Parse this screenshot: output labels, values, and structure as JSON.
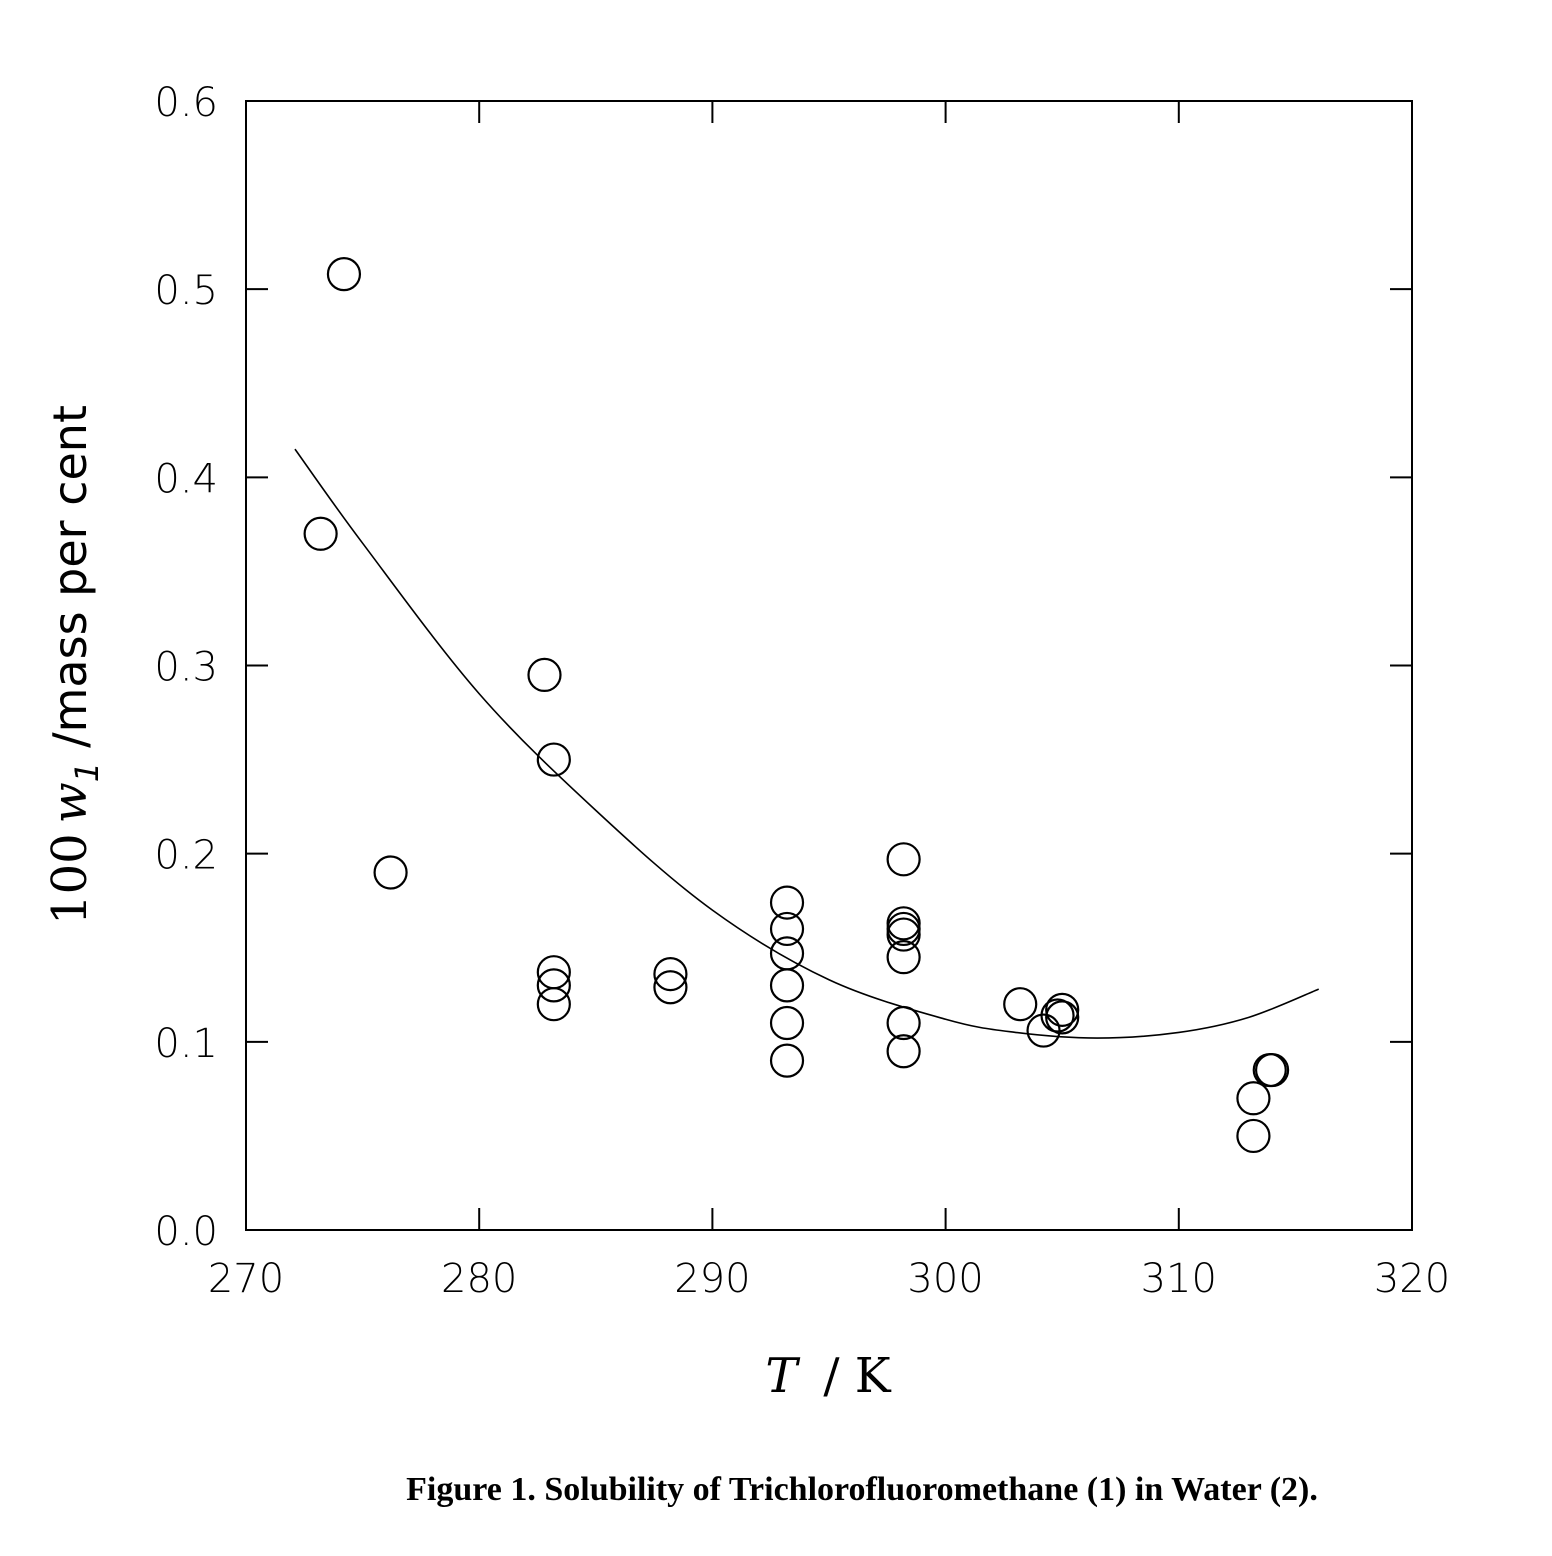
{
  "chart_data": {
    "type": "scatter",
    "xlabel": {
      "symbol": "T",
      "unit": "/  K"
    },
    "ylabel": {
      "prefix": "100",
      "symbol": "w",
      "subscript": "1",
      "unit": "/mass per cent"
    },
    "xlim": [
      270,
      320
    ],
    "ylim": [
      0.0,
      0.6
    ],
    "xticks": [
      "270",
      "280",
      "290",
      "300",
      "310",
      "320"
    ],
    "yticks": [
      "0.0",
      "0.1",
      "0.2",
      "0.3",
      "0.4",
      "0.5",
      "0.6"
    ],
    "grid": false,
    "series": [
      {
        "kind": "points",
        "marker": "open-circle",
        "points": [
          [
            274.2,
            0.508
          ],
          [
            273.2,
            0.37
          ],
          [
            276.2,
            0.19
          ],
          [
            282.8,
            0.295
          ],
          [
            283.2,
            0.25
          ],
          [
            283.2,
            0.137
          ],
          [
            283.2,
            0.13
          ],
          [
            283.2,
            0.12
          ],
          [
            288.2,
            0.136
          ],
          [
            288.2,
            0.129
          ],
          [
            293.2,
            0.174
          ],
          [
            293.2,
            0.16
          ],
          [
            293.2,
            0.147
          ],
          [
            293.2,
            0.13
          ],
          [
            293.2,
            0.11
          ],
          [
            293.2,
            0.09
          ],
          [
            298.2,
            0.197
          ],
          [
            298.2,
            0.163
          ],
          [
            298.2,
            0.16
          ],
          [
            298.2,
            0.157
          ],
          [
            298.2,
            0.145
          ],
          [
            298.2,
            0.11
          ],
          [
            298.2,
            0.095
          ],
          [
            303.2,
            0.12
          ],
          [
            304.2,
            0.106
          ],
          [
            304.8,
            0.114
          ],
          [
            305.0,
            0.117
          ],
          [
            305.0,
            0.113
          ],
          [
            313.2,
            0.07
          ],
          [
            313.2,
            0.05
          ],
          [
            313.9,
            0.085
          ],
          [
            314.0,
            0.085
          ]
        ]
      },
      {
        "kind": "fit-curve",
        "points": [
          [
            272.1,
            0.415
          ],
          [
            275,
            0.365
          ],
          [
            280,
            0.285
          ],
          [
            285,
            0.223
          ],
          [
            290,
            0.17
          ],
          [
            295,
            0.133
          ],
          [
            300,
            0.112
          ],
          [
            303,
            0.105
          ],
          [
            306.5,
            0.102
          ],
          [
            310,
            0.105
          ],
          [
            313,
            0.113
          ],
          [
            316,
            0.128
          ]
        ]
      }
    ]
  },
  "caption": "Figure 1.  Solubility of Trichlorofluoromethane (1) in Water (2)."
}
